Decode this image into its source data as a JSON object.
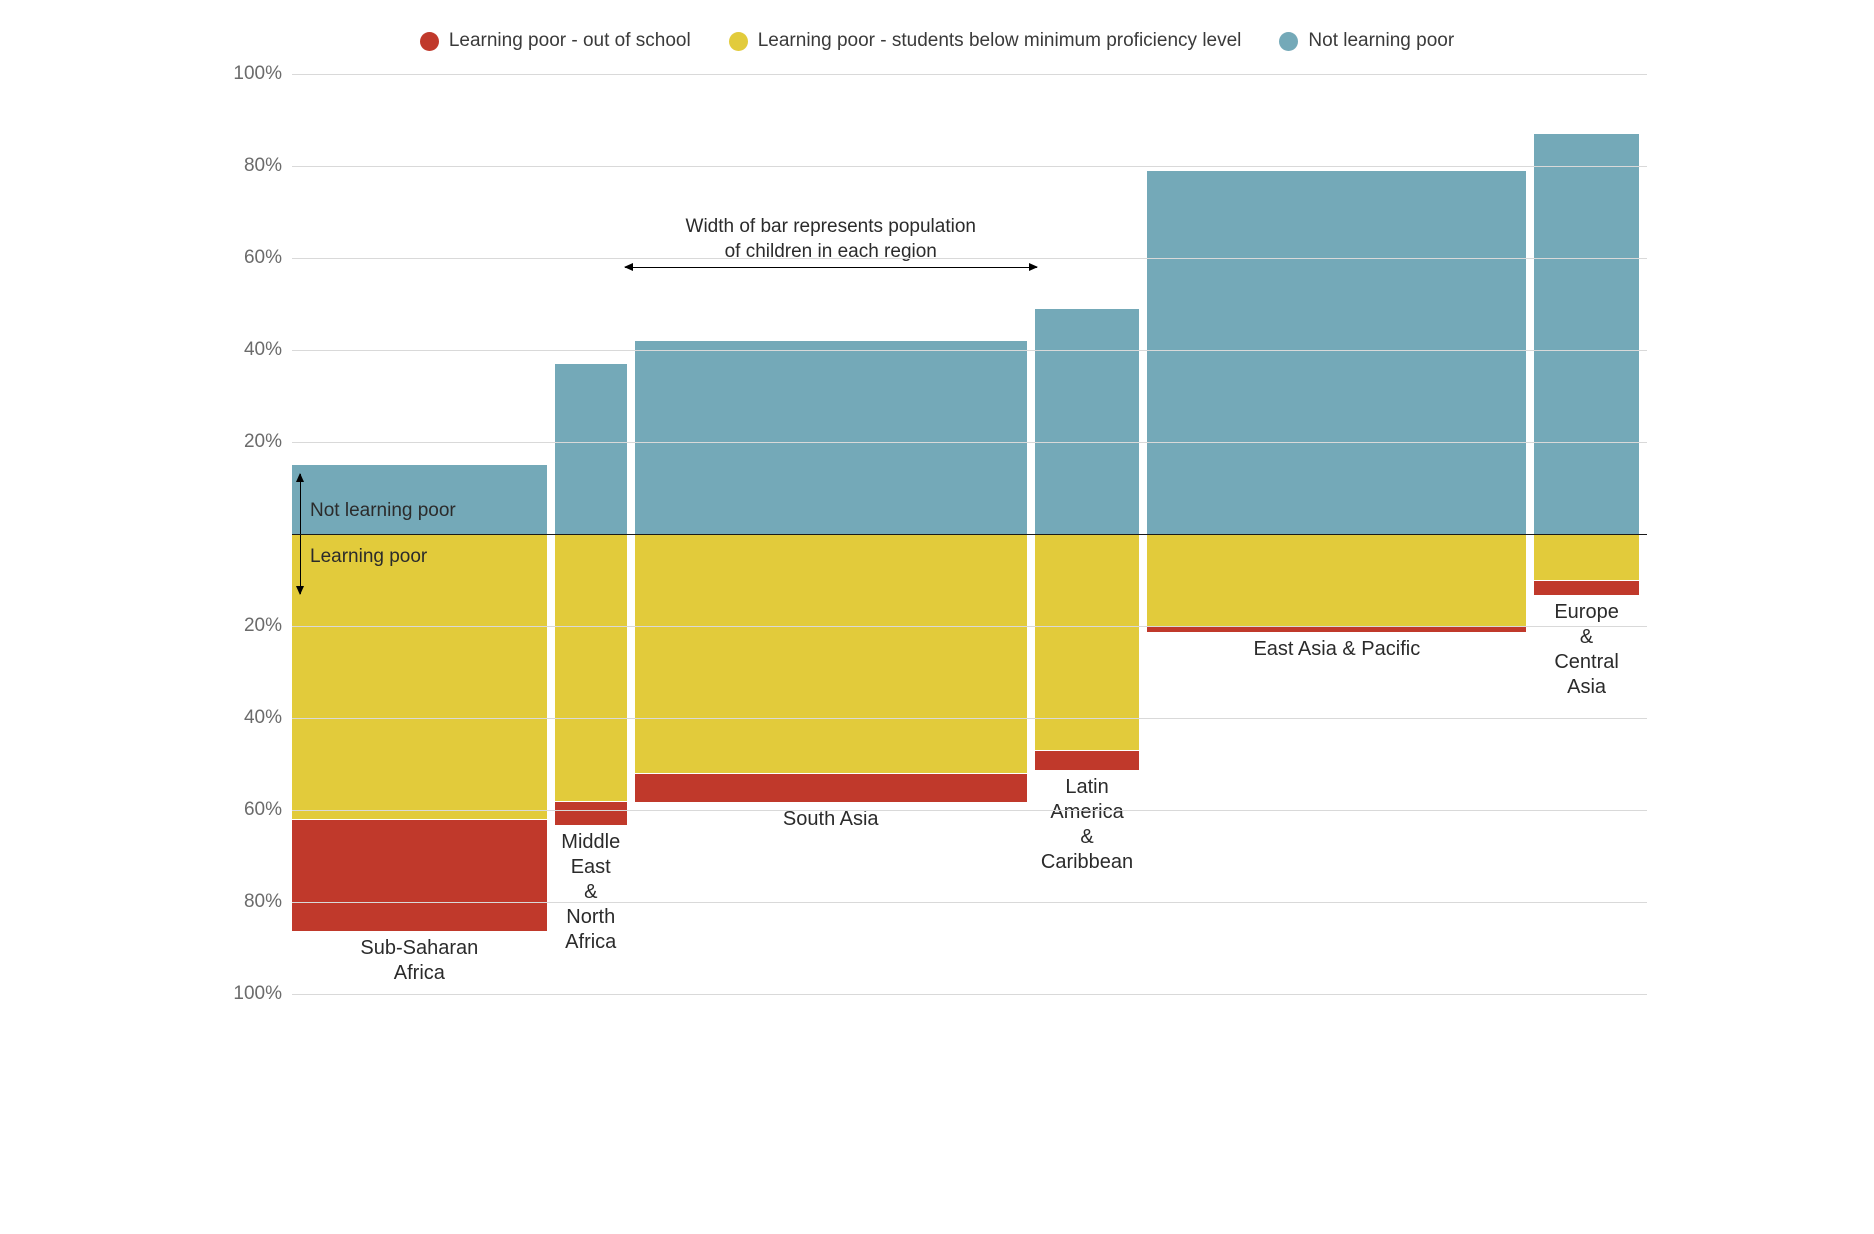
{
  "chart": {
    "type": "marimekko-diverging-stacked-bar",
    "legend": [
      {
        "label": "Learning poor - out of school",
        "color": "#c0392b"
      },
      {
        "label": "Learning poor - students below minimum proficiency level",
        "color": "#e2cb3b"
      },
      {
        "label": "Not learning poor",
        "color": "#74a9b8"
      }
    ],
    "colors": {
      "out_of_school": "#c0392b",
      "below_min": "#e2cb3b",
      "not_poor": "#74a9b8",
      "grid": "#d9d9d9",
      "zero_line": "#1a1a1a",
      "background": "#ffffff",
      "text": "#2b2b2b",
      "axis_text": "#6b6b6b"
    },
    "typography": {
      "legend_fontsize": 19,
      "axis_fontsize": 19,
      "region_label_fontsize": 20,
      "annotation_fontsize": 19,
      "font_family": "Segoe UI / system sans-serif"
    },
    "y_axis": {
      "top_max": 100,
      "bottom_max": 100,
      "ticks_top": [
        100,
        80,
        60,
        40,
        20
      ],
      "ticks_bottom": [
        20,
        40,
        60,
        80,
        100
      ],
      "tick_suffix": "%"
    },
    "bar_gap_percent": 0.6,
    "annotations": {
      "not_learning_poor_label": "Not learning poor",
      "learning_poor_label": "Learning poor",
      "width_caption_line1": "Width of bar represents population",
      "width_caption_line2": "of children in each region"
    },
    "regions": [
      {
        "name": "Sub-Saharan Africa",
        "name_lines": [
          "Sub-Saharan",
          "Africa"
        ],
        "width_share": 19.5,
        "not_learning_poor": 15,
        "below_min": 62,
        "out_of_school": 24
      },
      {
        "name": "Middle East & North Africa",
        "name_lines": [
          "Middle",
          "East",
          "&",
          "North",
          "Africa"
        ],
        "width_share": 5.5,
        "not_learning_poor": 37,
        "below_min": 58,
        "out_of_school": 5
      },
      {
        "name": "South Asia",
        "name_lines": [
          "South Asia"
        ],
        "width_share": 30.0,
        "not_learning_poor": 42,
        "below_min": 52,
        "out_of_school": 6
      },
      {
        "name": "Latin America & Caribbean",
        "name_lines": [
          "Latin",
          "America",
          "&",
          "Caribbean"
        ],
        "width_share": 8.0,
        "not_learning_poor": 49,
        "below_min": 47,
        "out_of_school": 4
      },
      {
        "name": "East Asia & Pacific",
        "name_lines": [
          "East Asia & Pacific"
        ],
        "width_share": 29.0,
        "not_learning_poor": 79,
        "below_min": 20,
        "out_of_school": 1
      },
      {
        "name": "Europe & Central Asia",
        "name_lines": [
          "Europe",
          "&",
          "Central",
          "Asia"
        ],
        "width_share": 8.0,
        "not_learning_poor": 87,
        "below_min": 10,
        "out_of_school": 3
      }
    ]
  }
}
